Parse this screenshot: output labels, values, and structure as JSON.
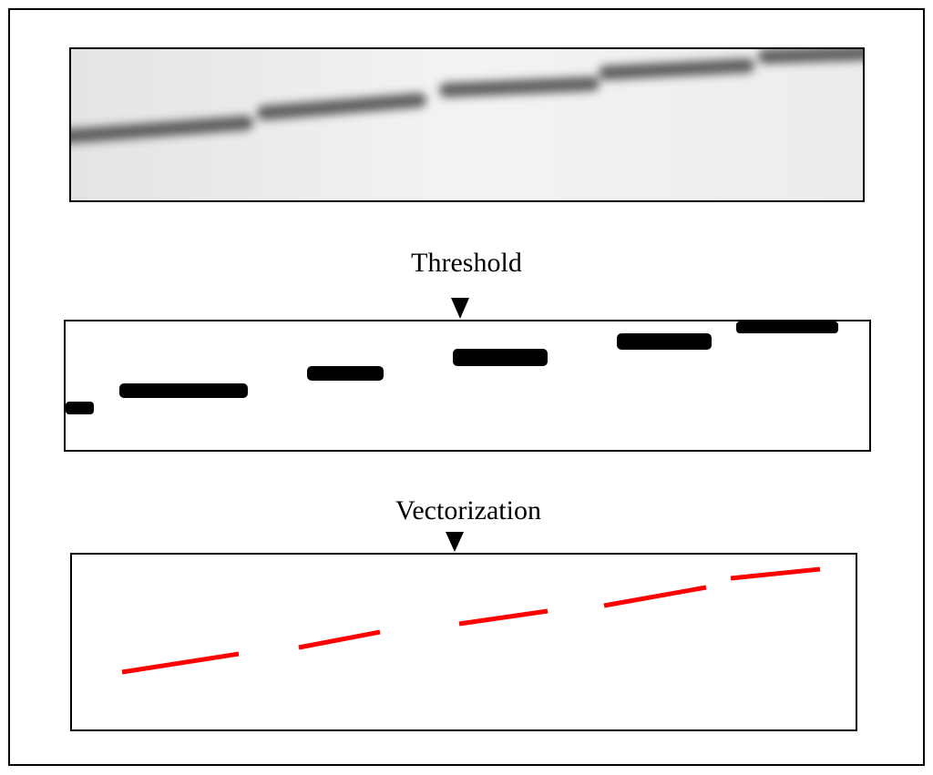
{
  "steps": {
    "threshold": "Threshold",
    "vectorization": "Vectorization"
  }
}
